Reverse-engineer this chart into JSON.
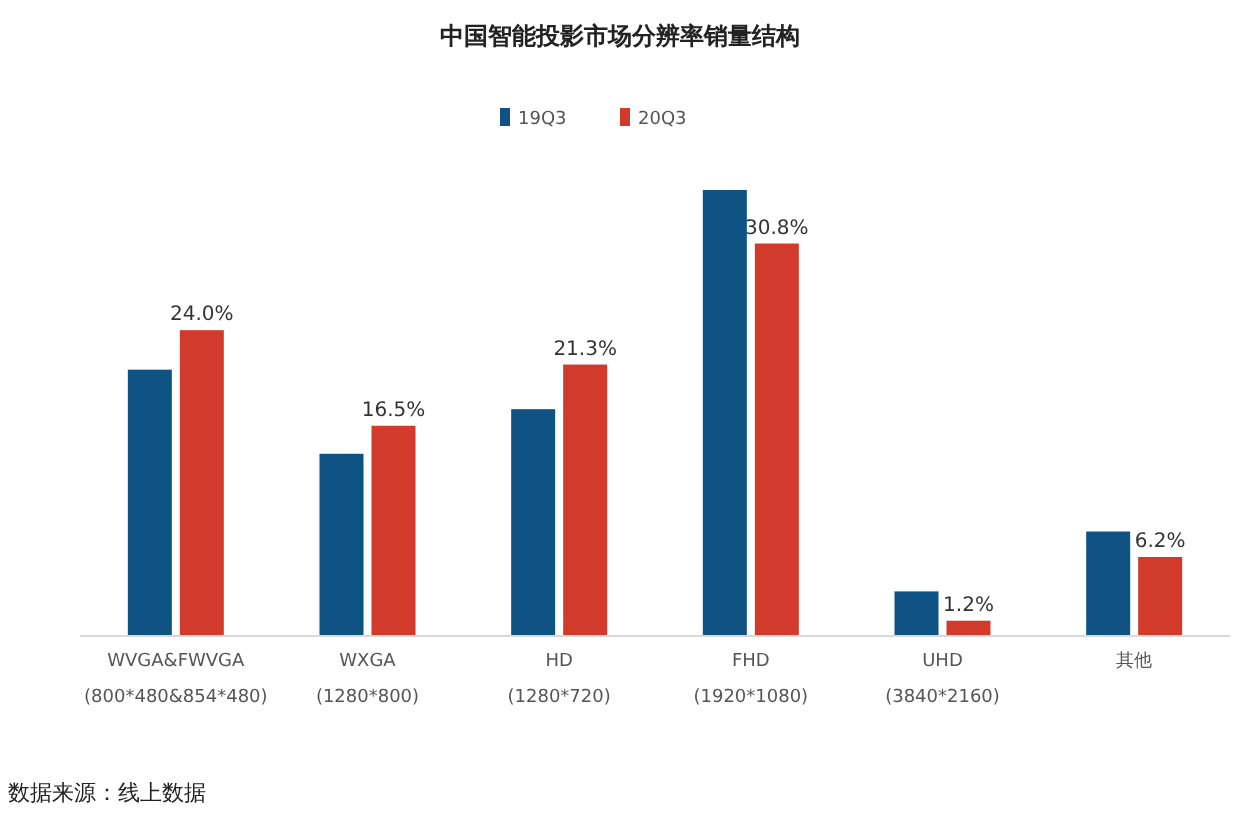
{
  "chart_data": {
    "type": "bar",
    "title": "中国智能投影市场分辨率销量结构",
    "categories": [
      "WVGA&FWVGA\n(800*480&854*480)",
      "WXGA\n(1280*800)",
      "HD\n(1280*720)",
      "FHD\n(1920*1080)",
      "UHD\n(3840*2160)",
      "其他"
    ],
    "series": [
      {
        "name": "19Q3",
        "color": "#0f5384",
        "values": [
          20.9,
          14.3,
          17.8,
          35.0,
          3.5,
          8.2
        ]
      },
      {
        "name": "20Q3",
        "color": "#d23b2c",
        "values": [
          24.0,
          16.5,
          21.3,
          30.8,
          1.2,
          6.2
        ],
        "value_labels": [
          "24.0%",
          "16.5%",
          "21.3%",
          "30.8%",
          "1.2%",
          "6.2%"
        ]
      }
    ],
    "legend": "top",
    "annotations": [
      "数据来源：线上数据"
    ]
  }
}
